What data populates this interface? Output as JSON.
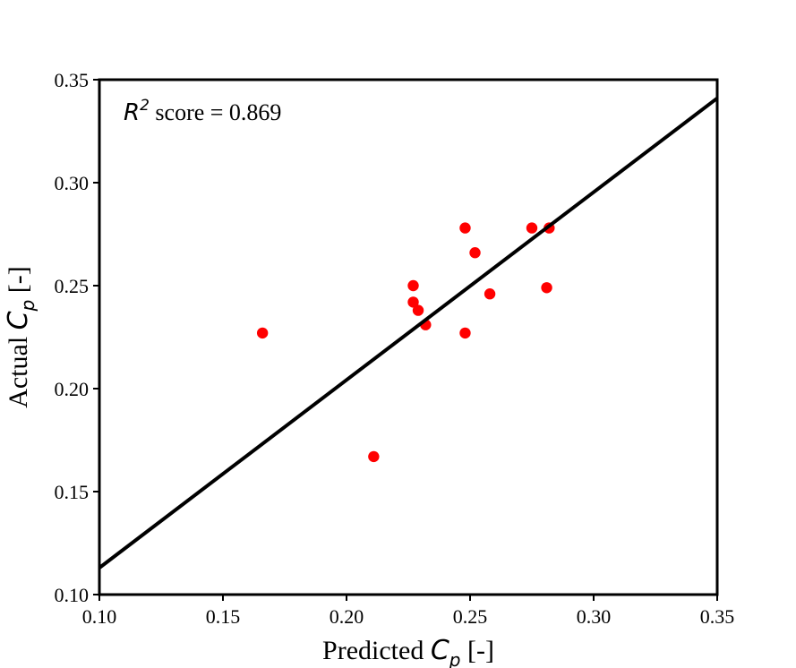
{
  "chart_data": {
    "type": "scatter",
    "xlabel": {
      "prefix": "Predicted ",
      "symbol": "C",
      "subscript": "p",
      "suffix": " [-]"
    },
    "ylabel": {
      "prefix": "Actual ",
      "symbol": "C",
      "subscript": "p",
      "suffix": " [-]"
    },
    "xlim": [
      0.1,
      0.35
    ],
    "ylim": [
      0.1,
      0.35
    ],
    "xticks": [
      "0.10",
      "0.15",
      "0.20",
      "0.25",
      "0.30",
      "0.35"
    ],
    "yticks": [
      "0.10",
      "0.15",
      "0.20",
      "0.25",
      "0.30",
      "0.35"
    ],
    "grid": false,
    "annotation": {
      "symbol": "R",
      "superscript": "2",
      "text": " score = 0.869"
    },
    "points": [
      {
        "x": 0.166,
        "y": 0.227
      },
      {
        "x": 0.211,
        "y": 0.167
      },
      {
        "x": 0.227,
        "y": 0.25
      },
      {
        "x": 0.227,
        "y": 0.242
      },
      {
        "x": 0.229,
        "y": 0.238
      },
      {
        "x": 0.232,
        "y": 0.231
      },
      {
        "x": 0.248,
        "y": 0.278
      },
      {
        "x": 0.248,
        "y": 0.227
      },
      {
        "x": 0.252,
        "y": 0.266
      },
      {
        "x": 0.258,
        "y": 0.246
      },
      {
        "x": 0.275,
        "y": 0.278
      },
      {
        "x": 0.281,
        "y": 0.249
      },
      {
        "x": 0.282,
        "y": 0.278
      }
    ],
    "fit_line": {
      "x": [
        0.1,
        0.35
      ],
      "y": [
        0.113,
        0.341
      ]
    },
    "colors": {
      "points": "#ff0000",
      "line": "#000000"
    }
  }
}
